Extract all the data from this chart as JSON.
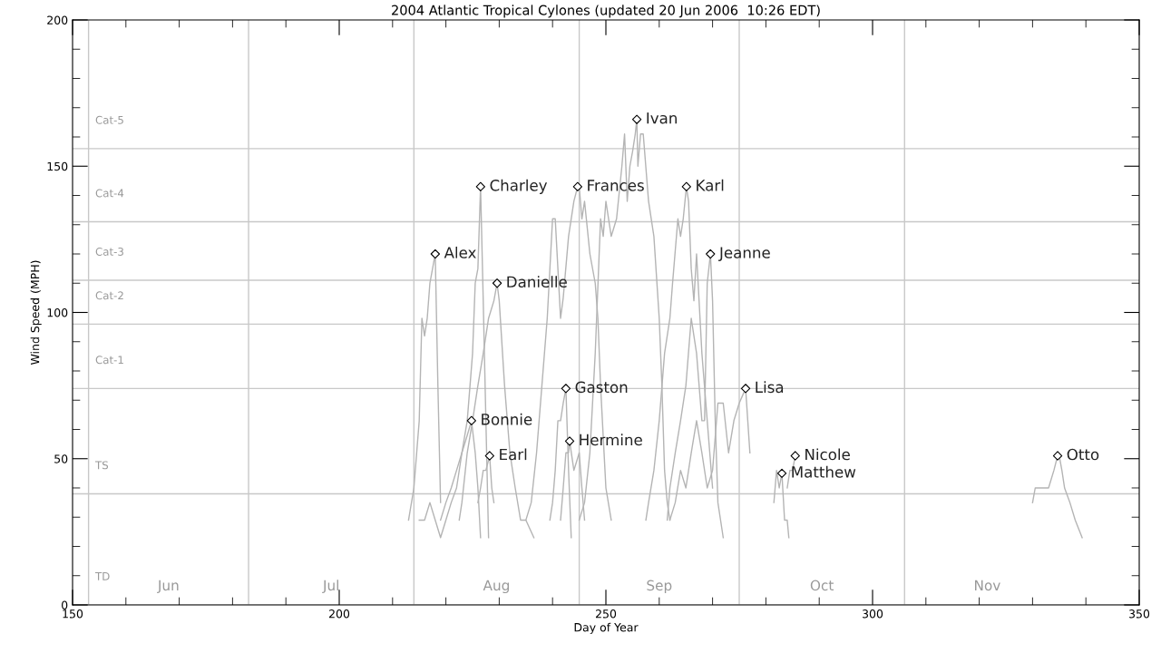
{
  "chart_data": {
    "type": "line",
    "title": "2004 Atlantic Tropical Cylones (updated 20 Jun 2006  10:26 EDT)",
    "xlabel": "Day of Year",
    "ylabel": "Wind Speed (MPH)",
    "xlim": [
      150,
      350
    ],
    "xticks": [
      150,
      {
        "value": 160,
        "label": null
      },
      {
        "value": 170,
        "label": null
      },
      {
        "value": 180,
        "label": null
      },
      {
        "value": 190,
        "label": null
      },
      200,
      {
        "value": 210,
        "label": null
      },
      {
        "value": 220,
        "label": null
      },
      {
        "value": 230,
        "label": null
      },
      {
        "value": 240,
        "label": null
      },
      250,
      {
        "value": 260,
        "label": null
      },
      {
        "value": 270,
        "label": null
      },
      {
        "value": 280,
        "label": null
      },
      {
        "value": 290,
        "label": null
      },
      300,
      {
        "value": 310,
        "label": null
      },
      {
        "value": 320,
        "label": null
      },
      {
        "value": 330,
        "label": null
      },
      {
        "value": 340,
        "label": null
      },
      350
    ],
    "ylim": [
      0,
      200
    ],
    "yticks": [
      0,
      {
        "value": 10,
        "label": null
      },
      {
        "value": 20,
        "label": null
      },
      {
        "value": 30,
        "label": null
      },
      {
        "value": 40,
        "label": null
      },
      50,
      {
        "value": 60,
        "label": null
      },
      {
        "value": 70,
        "label": null
      },
      {
        "value": 80,
        "label": null
      },
      {
        "value": 90,
        "label": null
      },
      100,
      {
        "value": 110,
        "label": null
      },
      {
        "value": 120,
        "label": null
      },
      {
        "value": 130,
        "label": null
      },
      {
        "value": 140,
        "label": null
      },
      150,
      {
        "value": 160,
        "label": null
      },
      {
        "value": 170,
        "label": null
      },
      {
        "value": 180,
        "label": null
      },
      {
        "value": 190,
        "label": null
      },
      200
    ],
    "grid": false,
    "legend": false,
    "line_style": "solid",
    "ref_lines": [
      {
        "axis": "y",
        "value": 0,
        "label": "TD",
        "color": "#c8c8c8"
      },
      {
        "axis": "y",
        "value": 38,
        "label": "TS",
        "color": "#c8c8c8"
      },
      {
        "axis": "y",
        "value": 74,
        "label": "Cat-1",
        "color": "#c8c8c8"
      },
      {
        "axis": "y",
        "value": 96,
        "label": "Cat-2",
        "color": "#c8c8c8"
      },
      {
        "axis": "y",
        "value": 111,
        "label": "Cat-3",
        "color": "#c8c8c8"
      },
      {
        "axis": "y",
        "value": 131,
        "label": "Cat-4",
        "color": "#c8c8c8"
      },
      {
        "axis": "y",
        "value": 156,
        "label": "Cat-5",
        "color": "#c8c8c8"
      },
      {
        "axis": "x",
        "value": 153,
        "color": "#c8c8c8"
      },
      {
        "axis": "x",
        "value": 183,
        "color": "#c8c8c8"
      },
      {
        "axis": "x",
        "value": 214,
        "color": "#c8c8c8"
      },
      {
        "axis": "x",
        "value": 245,
        "color": "#c8c8c8"
      },
      {
        "axis": "x",
        "value": 275,
        "color": "#c8c8c8"
      },
      {
        "axis": "x",
        "value": 306,
        "color": "#c8c8c8"
      }
    ],
    "series": [
      {
        "type": "line",
        "color": "#b4b4b4",
        "x": [
          213,
          214,
          215,
          215.5,
          216,
          216.5,
          217,
          217.5,
          218,
          218.5,
          219
        ],
        "values": [
          29,
          40,
          63,
          98,
          92,
          98,
          110,
          115,
          120,
          75,
          35
        ]
      },
      {
        "type": "line",
        "color": "#b4b4b4",
        "x": [
          215,
          216,
          217,
          218,
          219,
          220,
          221,
          222,
          223,
          224,
          224.8,
          225.5,
          226,
          226.5
        ],
        "values": [
          29,
          29,
          35,
          29,
          23,
          29,
          35,
          40,
          52,
          58,
          63,
          52,
          40,
          23
        ]
      },
      {
        "type": "line",
        "color": "#b4b4b4",
        "x": [
          219,
          220,
          221,
          222,
          223,
          224,
          225,
          225.5,
          226,
          226.5,
          227,
          227.5,
          228
        ],
        "values": [
          29,
          35,
          40,
          46,
          52,
          63,
          86,
          110,
          115,
          143,
          104,
          63,
          23
        ]
      },
      {
        "type": "line",
        "color": "#b4b4b4",
        "x": [
          226,
          226.5,
          227,
          227.5,
          228.2,
          228.6,
          229
        ],
        "values": [
          35,
          40,
          46,
          46,
          51,
          40,
          35
        ]
      },
      {
        "type": "line",
        "color": "#b4b4b4",
        "x": [
          222.5,
          223,
          224,
          225,
          226,
          227,
          228,
          229,
          229.6,
          230,
          231,
          232,
          233,
          234,
          235,
          236.5
        ],
        "values": [
          29,
          35,
          52,
          63,
          75,
          86,
          98,
          104,
          110,
          104,
          75,
          52,
          40,
          29,
          29,
          23
        ]
      },
      {
        "type": "line",
        "color": "#b4b4b4",
        "x": [
          235,
          236,
          237,
          238,
          239,
          240,
          240.5,
          241,
          241.5,
          242,
          243,
          244,
          244.7,
          245,
          245.5,
          246,
          247,
          248,
          248.5,
          249,
          250,
          251
        ],
        "values": [
          29,
          35,
          52,
          75,
          98,
          132,
          132,
          115,
          98,
          105,
          126,
          138,
          143,
          143,
          132,
          138,
          120,
          110,
          98,
          75,
          40,
          29
        ]
      },
      {
        "type": "line",
        "color": "#b4b4b4",
        "x": [
          239.5,
          240,
          240.5,
          241,
          241.5,
          242,
          242.5,
          243,
          243.5
        ],
        "values": [
          29,
          35,
          46,
          63,
          63,
          69,
          74,
          46,
          23
        ]
      },
      {
        "type": "line",
        "color": "#b4b4b4",
        "x": [
          241.5,
          242,
          242.5,
          243,
          243.2,
          244,
          245,
          245.5,
          246
        ],
        "values": [
          29,
          40,
          52,
          52,
          56,
          46,
          52,
          40,
          29
        ]
      },
      {
        "type": "line",
        "color": "#b4b4b4",
        "x": [
          245,
          246,
          247,
          248,
          249,
          249.5,
          250,
          251,
          252,
          253,
          253.5,
          254,
          254.5,
          255,
          255.5,
          255.8,
          256,
          256.5,
          257,
          258,
          259,
          260,
          260.5,
          261,
          261.5,
          262
        ],
        "values": [
          29,
          35,
          52,
          86,
          132,
          126,
          138,
          126,
          132,
          150,
          161,
          138,
          150,
          155,
          161,
          166,
          150,
          161,
          161,
          138,
          126,
          98,
          75,
          46,
          35,
          29
        ]
      },
      {
        "type": "line",
        "color": "#b4b4b4",
        "x": [
          261.5,
          262,
          263,
          264,
          265,
          266,
          267,
          268,
          268.5,
          269,
          269.6,
          270,
          270.5,
          271,
          272
        ],
        "values": [
          29,
          40,
          52,
          63,
          75,
          98,
          86,
          63,
          63,
          110,
          120,
          104,
          63,
          35,
          23
        ]
      },
      {
        "type": "line",
        "color": "#b4b4b4",
        "x": [
          257.5,
          258,
          259,
          260,
          261,
          262,
          262.5,
          263,
          263.5,
          264,
          264.5,
          265.1,
          265.5,
          266,
          266.5,
          267,
          268,
          269,
          270
        ],
        "values": [
          29,
          35,
          46,
          63,
          86,
          98,
          110,
          121,
          132,
          126,
          132,
          143,
          138,
          115,
          104,
          120,
          86,
          63,
          40
        ]
      },
      {
        "type": "line",
        "color": "#b4b4b4",
        "x": [
          262,
          263,
          264,
          265,
          266,
          267,
          268,
          269,
          270,
          271,
          272,
          273,
          274,
          275,
          276.2,
          277
        ],
        "values": [
          29,
          35,
          46,
          40,
          52,
          63,
          52,
          40,
          46,
          69,
          69,
          52,
          63,
          69,
          74,
          52
        ]
      },
      {
        "type": "line",
        "color": "#b4b4b4",
        "x": [
          281.5,
          282,
          282.5,
          283,
          283.5,
          284,
          284.3
        ],
        "values": [
          35,
          46,
          40,
          45,
          29,
          29,
          23
        ]
      },
      {
        "type": "line",
        "color": "#b4b4b4",
        "x": [
          284,
          284.5,
          285,
          285.5
        ],
        "values": [
          40,
          46,
          46,
          51
        ]
      },
      {
        "type": "line",
        "color": "#b4b4b4",
        "x": [
          330,
          330.5,
          333,
          334,
          334.7,
          335,
          335.5,
          336,
          337,
          338,
          339.3
        ],
        "values": [
          35,
          40,
          40,
          46,
          51,
          51,
          46,
          40,
          35,
          29,
          23
        ]
      },
      {
        "type": "scatter",
        "color": "#000000",
        "marker": "diamond",
        "x": [
          218,
          224.8,
          226.5,
          228.2,
          229.6,
          244.7,
          242.5,
          243.2,
          255.8,
          269.6,
          265.1,
          276.2,
          283,
          285.5,
          334.7
        ],
        "values": [
          120,
          63,
          143,
          51,
          110,
          143,
          74,
          56,
          166,
          120,
          143,
          74,
          45,
          51,
          51
        ]
      }
    ],
    "annotations": [
      {
        "text": "Alex",
        "x": 218,
        "y": 120
      },
      {
        "text": "Bonnie",
        "x": 224.8,
        "y": 63
      },
      {
        "text": "Charley",
        "x": 226.5,
        "y": 143
      },
      {
        "text": "Earl",
        "x": 228.2,
        "y": 51
      },
      {
        "text": "Danielle",
        "x": 229.6,
        "y": 110
      },
      {
        "text": "Frances",
        "x": 244.7,
        "y": 143
      },
      {
        "text": "Gaston",
        "x": 242.5,
        "y": 74
      },
      {
        "text": "Hermine",
        "x": 243.2,
        "y": 56
      },
      {
        "text": "Ivan",
        "x": 255.8,
        "y": 166
      },
      {
        "text": "Jeanne",
        "x": 269.6,
        "y": 120
      },
      {
        "text": "Karl",
        "x": 265.1,
        "y": 143
      },
      {
        "text": "Lisa",
        "x": 276.2,
        "y": 74
      },
      {
        "text": "Matthew",
        "x": 283,
        "y": 45
      },
      {
        "text": "Nicole",
        "x": 285.5,
        "y": 51
      },
      {
        "text": "Otto",
        "x": 334.7,
        "y": 51
      },
      "Jun",
      "Jul",
      "Aug",
      "Sep",
      "Oct",
      "Nov"
    ]
  }
}
